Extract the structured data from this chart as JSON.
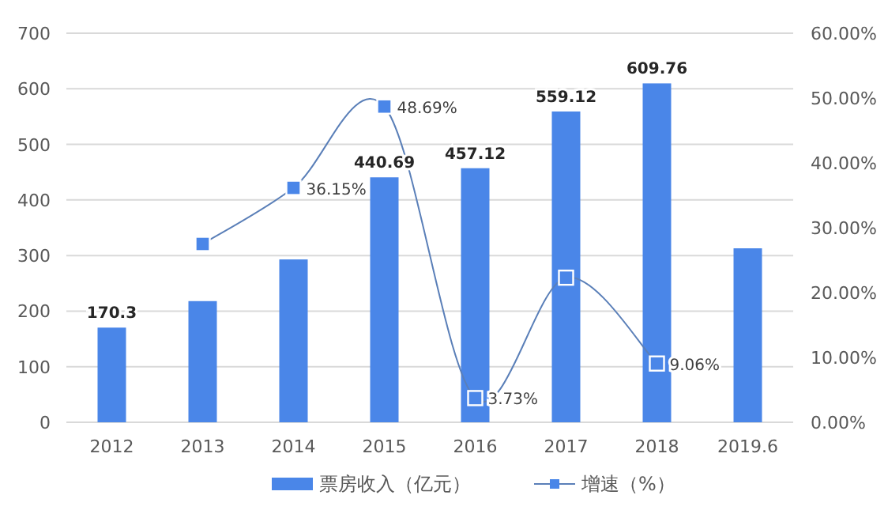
{
  "chart_data": {
    "type": "bar",
    "categories": [
      "2012",
      "2013",
      "2014",
      "2015",
      "2016",
      "2017",
      "2018",
      "2019.6"
    ],
    "series": [
      {
        "name": "票房收入（亿元）",
        "color": "#4a86e8",
        "values": [
          170.3,
          218,
          293,
          440.69,
          457.12,
          559.12,
          609.76,
          313
        ],
        "value_labels": [
          "170.3",
          null,
          null,
          "440.69",
          "457.12",
          "559.12",
          "609.76",
          null
        ]
      },
      {
        "name": "增速（%）",
        "type": "line",
        "axis": "y2",
        "color": "#5a7fb8",
        "marker": "square",
        "values": [
          null,
          27.5,
          36.15,
          48.69,
          3.73,
          22.3,
          9.06,
          null
        ],
        "value_labels": [
          null,
          null,
          "36.15%",
          "48.69%",
          "3.73%",
          null,
          "9.06%",
          null
        ]
      }
    ],
    "ylim": [
      0,
      700
    ],
    "yticks": [
      0,
      100,
      200,
      300,
      400,
      500,
      600,
      700
    ],
    "y2lim": [
      0,
      60
    ],
    "y2ticks": [
      {
        "value": 0,
        "label": "0.00%"
      },
      {
        "value": 10,
        "label": "10.00%"
      },
      {
        "value": 20,
        "label": "20.00%"
      },
      {
        "value": 30,
        "label": "30.00%"
      },
      {
        "value": 40,
        "label": "40.00%"
      },
      {
        "value": 50,
        "label": "50.00%"
      },
      {
        "value": 60,
        "label": "60.00%"
      }
    ],
    "grid": "y",
    "legend": "bottom"
  }
}
